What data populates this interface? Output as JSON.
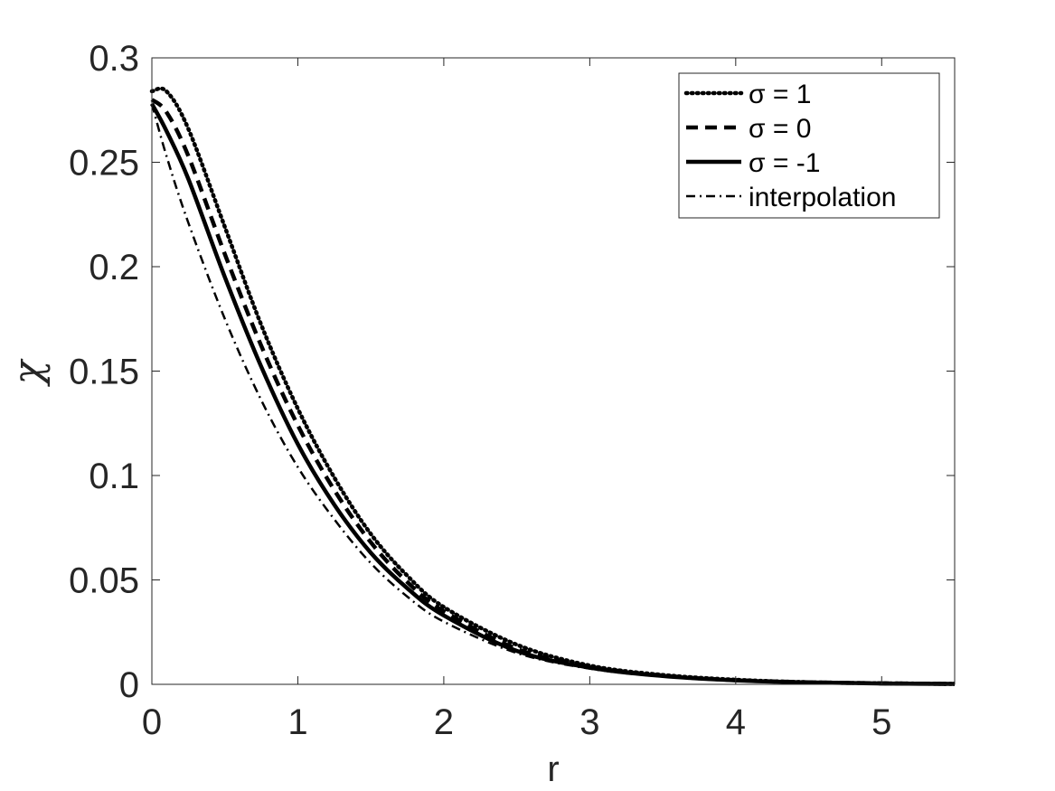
{
  "chart_data": {
    "type": "line",
    "xlabel": "r",
    "ylabel": "χ",
    "xlim": [
      0,
      5.5
    ],
    "ylim": [
      0,
      0.3
    ],
    "xticks": [
      "0",
      "1",
      "2",
      "3",
      "4",
      "5"
    ],
    "yticks": [
      "0",
      "0.05",
      "0.1",
      "0.15",
      "0.2",
      "0.25",
      "0.3"
    ],
    "grid": false,
    "legend_position": "top-right",
    "x": [
      0,
      0.1,
      0.25,
      0.5,
      0.75,
      1,
      1.25,
      1.5,
      1.75,
      2,
      2.5,
      3,
      3.5,
      4,
      4.5,
      5,
      5.5
    ],
    "series": [
      {
        "name": "σ = 1",
        "style": "dotted",
        "values": [
          0.284,
          0.284,
          0.266,
          0.219,
          0.172,
          0.132,
          0.099,
          0.072,
          0.052,
          0.037,
          0.019,
          0.009,
          0.0045,
          0.0022,
          0.001,
          0.0005,
          0.0002
        ]
      },
      {
        "name": "σ = 0",
        "style": "dashed",
        "values": [
          0.28,
          0.274,
          0.253,
          0.206,
          0.162,
          0.124,
          0.093,
          0.068,
          0.049,
          0.035,
          0.017,
          0.0085,
          0.0042,
          0.002,
          0.001,
          0.0005,
          0.0002
        ]
      },
      {
        "name": "σ = -1",
        "style": "solid",
        "values": [
          0.278,
          0.265,
          0.242,
          0.195,
          0.152,
          0.115,
          0.086,
          0.063,
          0.046,
          0.033,
          0.016,
          0.008,
          0.004,
          0.0019,
          0.0009,
          0.0004,
          0.0002
        ]
      },
      {
        "name": "interpolation",
        "style": "dashdot",
        "values": [
          0.278,
          0.253,
          0.221,
          0.175,
          0.136,
          0.104,
          0.079,
          0.058,
          0.042,
          0.03,
          0.015,
          0.0075,
          0.0037,
          0.0018,
          0.0009,
          0.0004,
          0.0002
        ]
      }
    ],
    "colors": {
      "line": "#000000",
      "axis": "#262626",
      "background": "#ffffff"
    }
  }
}
